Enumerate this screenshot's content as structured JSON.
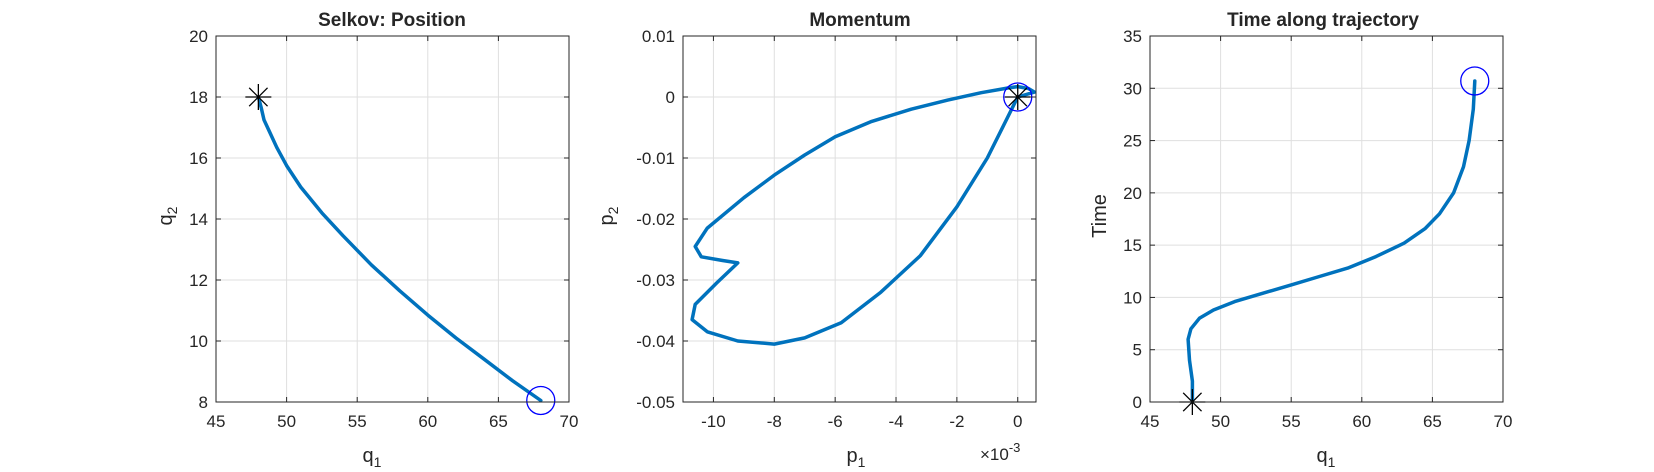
{
  "colors": {
    "curve": "#0072BD",
    "start_marker": "#0000FF",
    "end_marker": "#000000",
    "grid": "#DFDFDF",
    "axes": "#262626"
  },
  "chart_data": [
    {
      "type": "line",
      "title": "Selkov: Position",
      "xlabel": "q",
      "xlabel_sub": "1",
      "ylabel": "q",
      "ylabel_sub": "2",
      "xlim": [
        45,
        70
      ],
      "ylim": [
        8,
        20
      ],
      "xticks": [
        45,
        50,
        55,
        60,
        65,
        70
      ],
      "yticks": [
        8,
        10,
        12,
        14,
        16,
        18,
        20
      ],
      "grid": true,
      "series": [
        {
          "x": [
            68.0,
            66.0,
            64.0,
            62.0,
            60.0,
            58.0,
            56.0,
            54.0,
            52.5,
            51.0,
            50.0,
            49.3,
            48.8,
            48.4,
            48.2,
            48.0
          ],
          "y": [
            8.05,
            8.7,
            9.4,
            10.1,
            10.85,
            11.65,
            12.5,
            13.45,
            14.2,
            15.05,
            15.75,
            16.35,
            16.85,
            17.25,
            17.65,
            18.0
          ]
        }
      ],
      "circle_marker": {
        "x": 68.0,
        "y": 8.05
      },
      "star_marker": {
        "x": 48.0,
        "y": 18.0
      }
    },
    {
      "type": "line",
      "title": "Momentum",
      "xlabel": "p",
      "xlabel_sub": "1",
      "ylabel": "p",
      "ylabel_sub": "2",
      "x_exponent_base": "×10",
      "x_exponent_power": "-3",
      "xlim": [
        -11,
        0.6
      ],
      "ylim": [
        -0.05,
        0.01
      ],
      "xticks": [
        -10,
        -8,
        -6,
        -4,
        -2,
        0
      ],
      "yticks": [
        -0.05,
        -0.04,
        -0.03,
        -0.02,
        -0.01,
        0,
        0.01
      ],
      "ytick_labels": [
        "-0.05",
        "-0.04",
        "-0.03",
        "-0.02",
        "-0.01",
        "0",
        "0.01"
      ],
      "grid": true,
      "series": [
        {
          "x": [
            0.0,
            -0.4,
            -1.0,
            -2.0,
            -3.2,
            -4.5,
            -5.8,
            -7.0,
            -8.0,
            -9.2,
            -10.2,
            -10.7,
            -10.6,
            -9.9,
            -9.2,
            -9.7,
            -10.4,
            -10.6,
            -10.2,
            -9.0,
            -8.0,
            -7.0,
            -6.0,
            -4.8,
            -3.5,
            -2.3,
            -1.2,
            -0.3,
            0.0,
            0.35,
            0.55,
            0.0
          ],
          "y": [
            0.0,
            -0.004,
            -0.01,
            -0.018,
            -0.026,
            -0.032,
            -0.037,
            -0.0395,
            -0.0405,
            -0.04,
            -0.0385,
            -0.0365,
            -0.034,
            -0.0305,
            -0.0272,
            -0.0268,
            -0.0262,
            -0.0245,
            -0.0215,
            -0.0165,
            -0.0128,
            -0.0095,
            -0.0065,
            -0.004,
            -0.002,
            -0.0005,
            0.0007,
            0.0015,
            0.0017,
            0.0014,
            0.0008,
            0.0
          ]
        }
      ],
      "circle_marker": {
        "x": 0.0,
        "y": 0.0
      },
      "star_marker": {
        "x": 0.0,
        "y": 0.0
      }
    },
    {
      "type": "line",
      "title": "Time along trajectory",
      "xlabel": "q",
      "xlabel_sub": "1",
      "ylabel": "Time",
      "xlim": [
        45,
        70
      ],
      "ylim": [
        0,
        35
      ],
      "xticks": [
        45,
        50,
        55,
        60,
        65,
        70
      ],
      "yticks": [
        0,
        5,
        10,
        15,
        20,
        25,
        30,
        35
      ],
      "grid": true,
      "series": [
        {
          "x": [
            48.0,
            48.0,
            47.8,
            47.7,
            47.9,
            48.5,
            49.5,
            51.0,
            53.0,
            55.0,
            57.0,
            59.0,
            61.0,
            63.0,
            64.5,
            65.5,
            66.5,
            67.2,
            67.6,
            67.9,
            68.0
          ],
          "y": [
            0.0,
            2.0,
            4.0,
            6.0,
            7.0,
            8.0,
            8.8,
            9.6,
            10.4,
            11.2,
            12.0,
            12.8,
            13.9,
            15.2,
            16.6,
            18.0,
            20.0,
            22.5,
            25.0,
            28.0,
            30.7
          ]
        }
      ],
      "circle_marker": {
        "x": 68.0,
        "y": 30.7
      },
      "star_marker": {
        "x": 48.0,
        "y": 0.0
      }
    }
  ]
}
